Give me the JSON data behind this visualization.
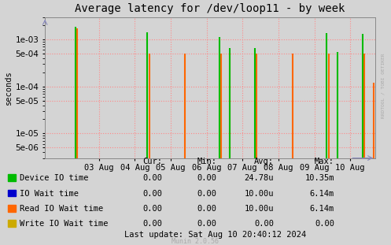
{
  "title": "Average latency for /dev/loop11 - by week",
  "ylabel": "seconds",
  "background_color": "#d4d4d4",
  "plot_bg_color": "#d4d4d4",
  "grid_color": "#ff8888",
  "ylim_log_min": 3e-06,
  "ylim_log_max": 0.003,
  "xlim_min": -0.5,
  "xlim_max": 8.7,
  "x_tick_positions": [
    1,
    2,
    3,
    4,
    5,
    6,
    7,
    8
  ],
  "x_tick_labels": [
    "03 Aug",
    "04 Aug",
    "05 Aug",
    "06 Aug",
    "07 Aug",
    "08 Aug",
    "09 Aug",
    "10 Aug"
  ],
  "device_io_spikes": [
    [
      0.35,
      0.0019
    ],
    [
      2.35,
      0.00145
    ],
    [
      4.35,
      0.00115
    ],
    [
      4.65,
      0.00065
    ],
    [
      5.35,
      0.00065
    ],
    [
      7.35,
      0.00135
    ],
    [
      7.65,
      0.00055
    ],
    [
      8.35,
      0.0013
    ]
  ],
  "read_io_spikes": [
    [
      0.4,
      0.00175
    ],
    [
      2.4,
      0.0005
    ],
    [
      3.4,
      0.0005
    ],
    [
      4.4,
      0.0005
    ],
    [
      4.65,
      0.0005
    ],
    [
      5.4,
      0.0005
    ],
    [
      6.4,
      0.0005
    ],
    [
      7.4,
      0.0005
    ],
    [
      8.4,
      0.0005
    ],
    [
      8.65,
      0.00012
    ]
  ],
  "green_color": "#00bb00",
  "orange_color": "#ff6600",
  "blue_color": "#0000cc",
  "yellow_color": "#ccaa00",
  "legend_items": [
    {
      "label": "Device IO time",
      "color": "#00bb00",
      "cur": "0.00",
      "min": "0.00",
      "avg": "24.78u",
      "max": "10.35m"
    },
    {
      "label": "IO Wait time",
      "color": "#0000cc",
      "cur": "0.00",
      "min": "0.00",
      "avg": "10.00u",
      "max": "6.14m"
    },
    {
      "label": "Read IO Wait time",
      "color": "#ff6600",
      "cur": "0.00",
      "min": "0.00",
      "avg": "10.00u",
      "max": "6.14m"
    },
    {
      "label": "Write IO Wait time",
      "color": "#ccaa00",
      "cur": "0.00",
      "min": "0.00",
      "avg": "0.00",
      "max": "0.00"
    }
  ],
  "last_update": "Last update: Sat Aug 10 20:40:12 2024",
  "watermark": "Munin 2.0.56",
  "rrdtool_label": "RRDTOOL / TOBI OETIKER",
  "title_fontsize": 10,
  "axis_label_fontsize": 7.5,
  "tick_fontsize": 7.5,
  "legend_fontsize": 7.5
}
